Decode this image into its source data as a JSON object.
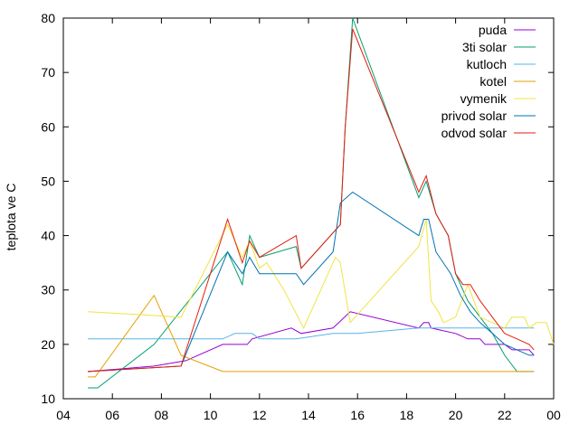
{
  "chart_data": {
    "type": "line",
    "ylabel": "teplota ve C",
    "xlabel": "",
    "title": "",
    "xlim": [
      4,
      24
    ],
    "ylim": [
      10,
      80
    ],
    "x_ticks": [
      "04",
      "06",
      "08",
      "10",
      "12",
      "14",
      "16",
      "18",
      "20",
      "22",
      "00"
    ],
    "y_ticks": [
      "10",
      "20",
      "30",
      "40",
      "50",
      "60",
      "70",
      "80"
    ],
    "grid": false,
    "legend_position": "top-right",
    "series": [
      {
        "name": "puda",
        "color": "#9400d3",
        "points": [
          [
            5,
            15
          ],
          [
            7.7,
            16
          ],
          [
            9,
            17
          ],
          [
            10.5,
            20
          ],
          [
            11.5,
            20
          ],
          [
            11.7,
            21
          ],
          [
            13.3,
            23
          ],
          [
            13.7,
            22
          ],
          [
            15,
            23
          ],
          [
            15.7,
            26
          ],
          [
            18.5,
            23
          ],
          [
            18.7,
            24
          ],
          [
            18.9,
            24
          ],
          [
            19,
            23
          ],
          [
            20,
            22
          ],
          [
            20.5,
            21
          ],
          [
            21,
            21
          ],
          [
            21.2,
            20
          ],
          [
            22,
            20
          ],
          [
            22.3,
            19
          ],
          [
            23,
            19
          ],
          [
            23.2,
            18
          ]
        ]
      },
      {
        "name": "3ti solar",
        "color": "#009e73",
        "points": [
          [
            5,
            12
          ],
          [
            5.4,
            12
          ],
          [
            7.7,
            20
          ],
          [
            10.7,
            37
          ],
          [
            11.3,
            31
          ],
          [
            11.6,
            40
          ],
          [
            12,
            36
          ],
          [
            13.5,
            38
          ],
          [
            13.7,
            34
          ],
          [
            15.3,
            42
          ],
          [
            15.5,
            60
          ],
          [
            15.8,
            80
          ],
          [
            18.5,
            47
          ],
          [
            18.8,
            50
          ],
          [
            19.2,
            44
          ],
          [
            19.7,
            40
          ],
          [
            20,
            33
          ],
          [
            20.5,
            28
          ],
          [
            21,
            25
          ],
          [
            21.5,
            22
          ],
          [
            22,
            18
          ],
          [
            22.5,
            15
          ],
          [
            23,
            15
          ],
          [
            23.2,
            15
          ]
        ]
      },
      {
        "name": "kutloch",
        "color": "#56b4e9",
        "points": [
          [
            5,
            21
          ],
          [
            10.5,
            21
          ],
          [
            11,
            22
          ],
          [
            11.7,
            22
          ],
          [
            12,
            21
          ],
          [
            13.5,
            21
          ],
          [
            15,
            22
          ],
          [
            16,
            22
          ],
          [
            18.5,
            23
          ],
          [
            20,
            23
          ],
          [
            21,
            23
          ],
          [
            23.2,
            23
          ]
        ]
      },
      {
        "name": "kotel",
        "color": "#e69f00",
        "points": [
          [
            5,
            14
          ],
          [
            5.3,
            14
          ],
          [
            7.7,
            29
          ],
          [
            8.8,
            18
          ],
          [
            10.5,
            15
          ],
          [
            13,
            15
          ],
          [
            20,
            15
          ],
          [
            23,
            15
          ],
          [
            23.2,
            15
          ]
        ]
      },
      {
        "name": "vymenik",
        "color": "#f0e442",
        "points": [
          [
            5,
            26
          ],
          [
            7,
            25.5
          ],
          [
            8.8,
            25
          ],
          [
            10.7,
            42
          ],
          [
            11.3,
            36
          ],
          [
            11.6,
            39
          ],
          [
            12,
            34
          ],
          [
            12.3,
            35
          ],
          [
            13,
            30
          ],
          [
            13.8,
            23
          ],
          [
            15.1,
            36
          ],
          [
            15.3,
            35
          ],
          [
            15.7,
            24
          ],
          [
            18.5,
            38
          ],
          [
            18.8,
            43
          ],
          [
            19,
            28
          ],
          [
            19.3,
            26
          ],
          [
            19.5,
            24
          ],
          [
            20,
            25
          ],
          [
            20.5,
            31
          ],
          [
            21,
            25
          ],
          [
            21.5,
            24
          ],
          [
            22,
            23
          ],
          [
            22.3,
            25
          ],
          [
            22.8,
            25
          ],
          [
            23,
            23
          ],
          [
            23.3,
            24
          ],
          [
            23.7,
            24
          ],
          [
            24,
            20
          ]
        ]
      },
      {
        "name": "privod solar",
        "color": "#0072b2",
        "points": [
          [
            5,
            15
          ],
          [
            8.8,
            16
          ],
          [
            10.7,
            37
          ],
          [
            11.3,
            33
          ],
          [
            11.6,
            36
          ],
          [
            12,
            33
          ],
          [
            13.5,
            33
          ],
          [
            13.8,
            31
          ],
          [
            15,
            37
          ],
          [
            15.3,
            46
          ],
          [
            15.8,
            48
          ],
          [
            18.5,
            40
          ],
          [
            18.7,
            43
          ],
          [
            18.9,
            43
          ],
          [
            19.2,
            37
          ],
          [
            19.8,
            33
          ],
          [
            20.2,
            29
          ],
          [
            20.6,
            26
          ],
          [
            21,
            24
          ],
          [
            21.5,
            22
          ],
          [
            22,
            20
          ],
          [
            22.5,
            19
          ],
          [
            23,
            18
          ],
          [
            23.2,
            18
          ]
        ]
      },
      {
        "name": "odvod solar",
        "color": "#e51e10",
        "points": [
          [
            5,
            15
          ],
          [
            8.8,
            16
          ],
          [
            10.7,
            43
          ],
          [
            11.3,
            35
          ],
          [
            11.6,
            39
          ],
          [
            12,
            36
          ],
          [
            13.5,
            40
          ],
          [
            13.7,
            34
          ],
          [
            15.3,
            42
          ],
          [
            15.5,
            60
          ],
          [
            15.8,
            78
          ],
          [
            18.5,
            48
          ],
          [
            18.8,
            51
          ],
          [
            19.2,
            44
          ],
          [
            19.7,
            40
          ],
          [
            20,
            33
          ],
          [
            20.3,
            31
          ],
          [
            20.6,
            31
          ],
          [
            21,
            28
          ],
          [
            21.5,
            25
          ],
          [
            22,
            22
          ],
          [
            22.5,
            21
          ],
          [
            23,
            20
          ],
          [
            23.2,
            19
          ]
        ]
      }
    ]
  }
}
